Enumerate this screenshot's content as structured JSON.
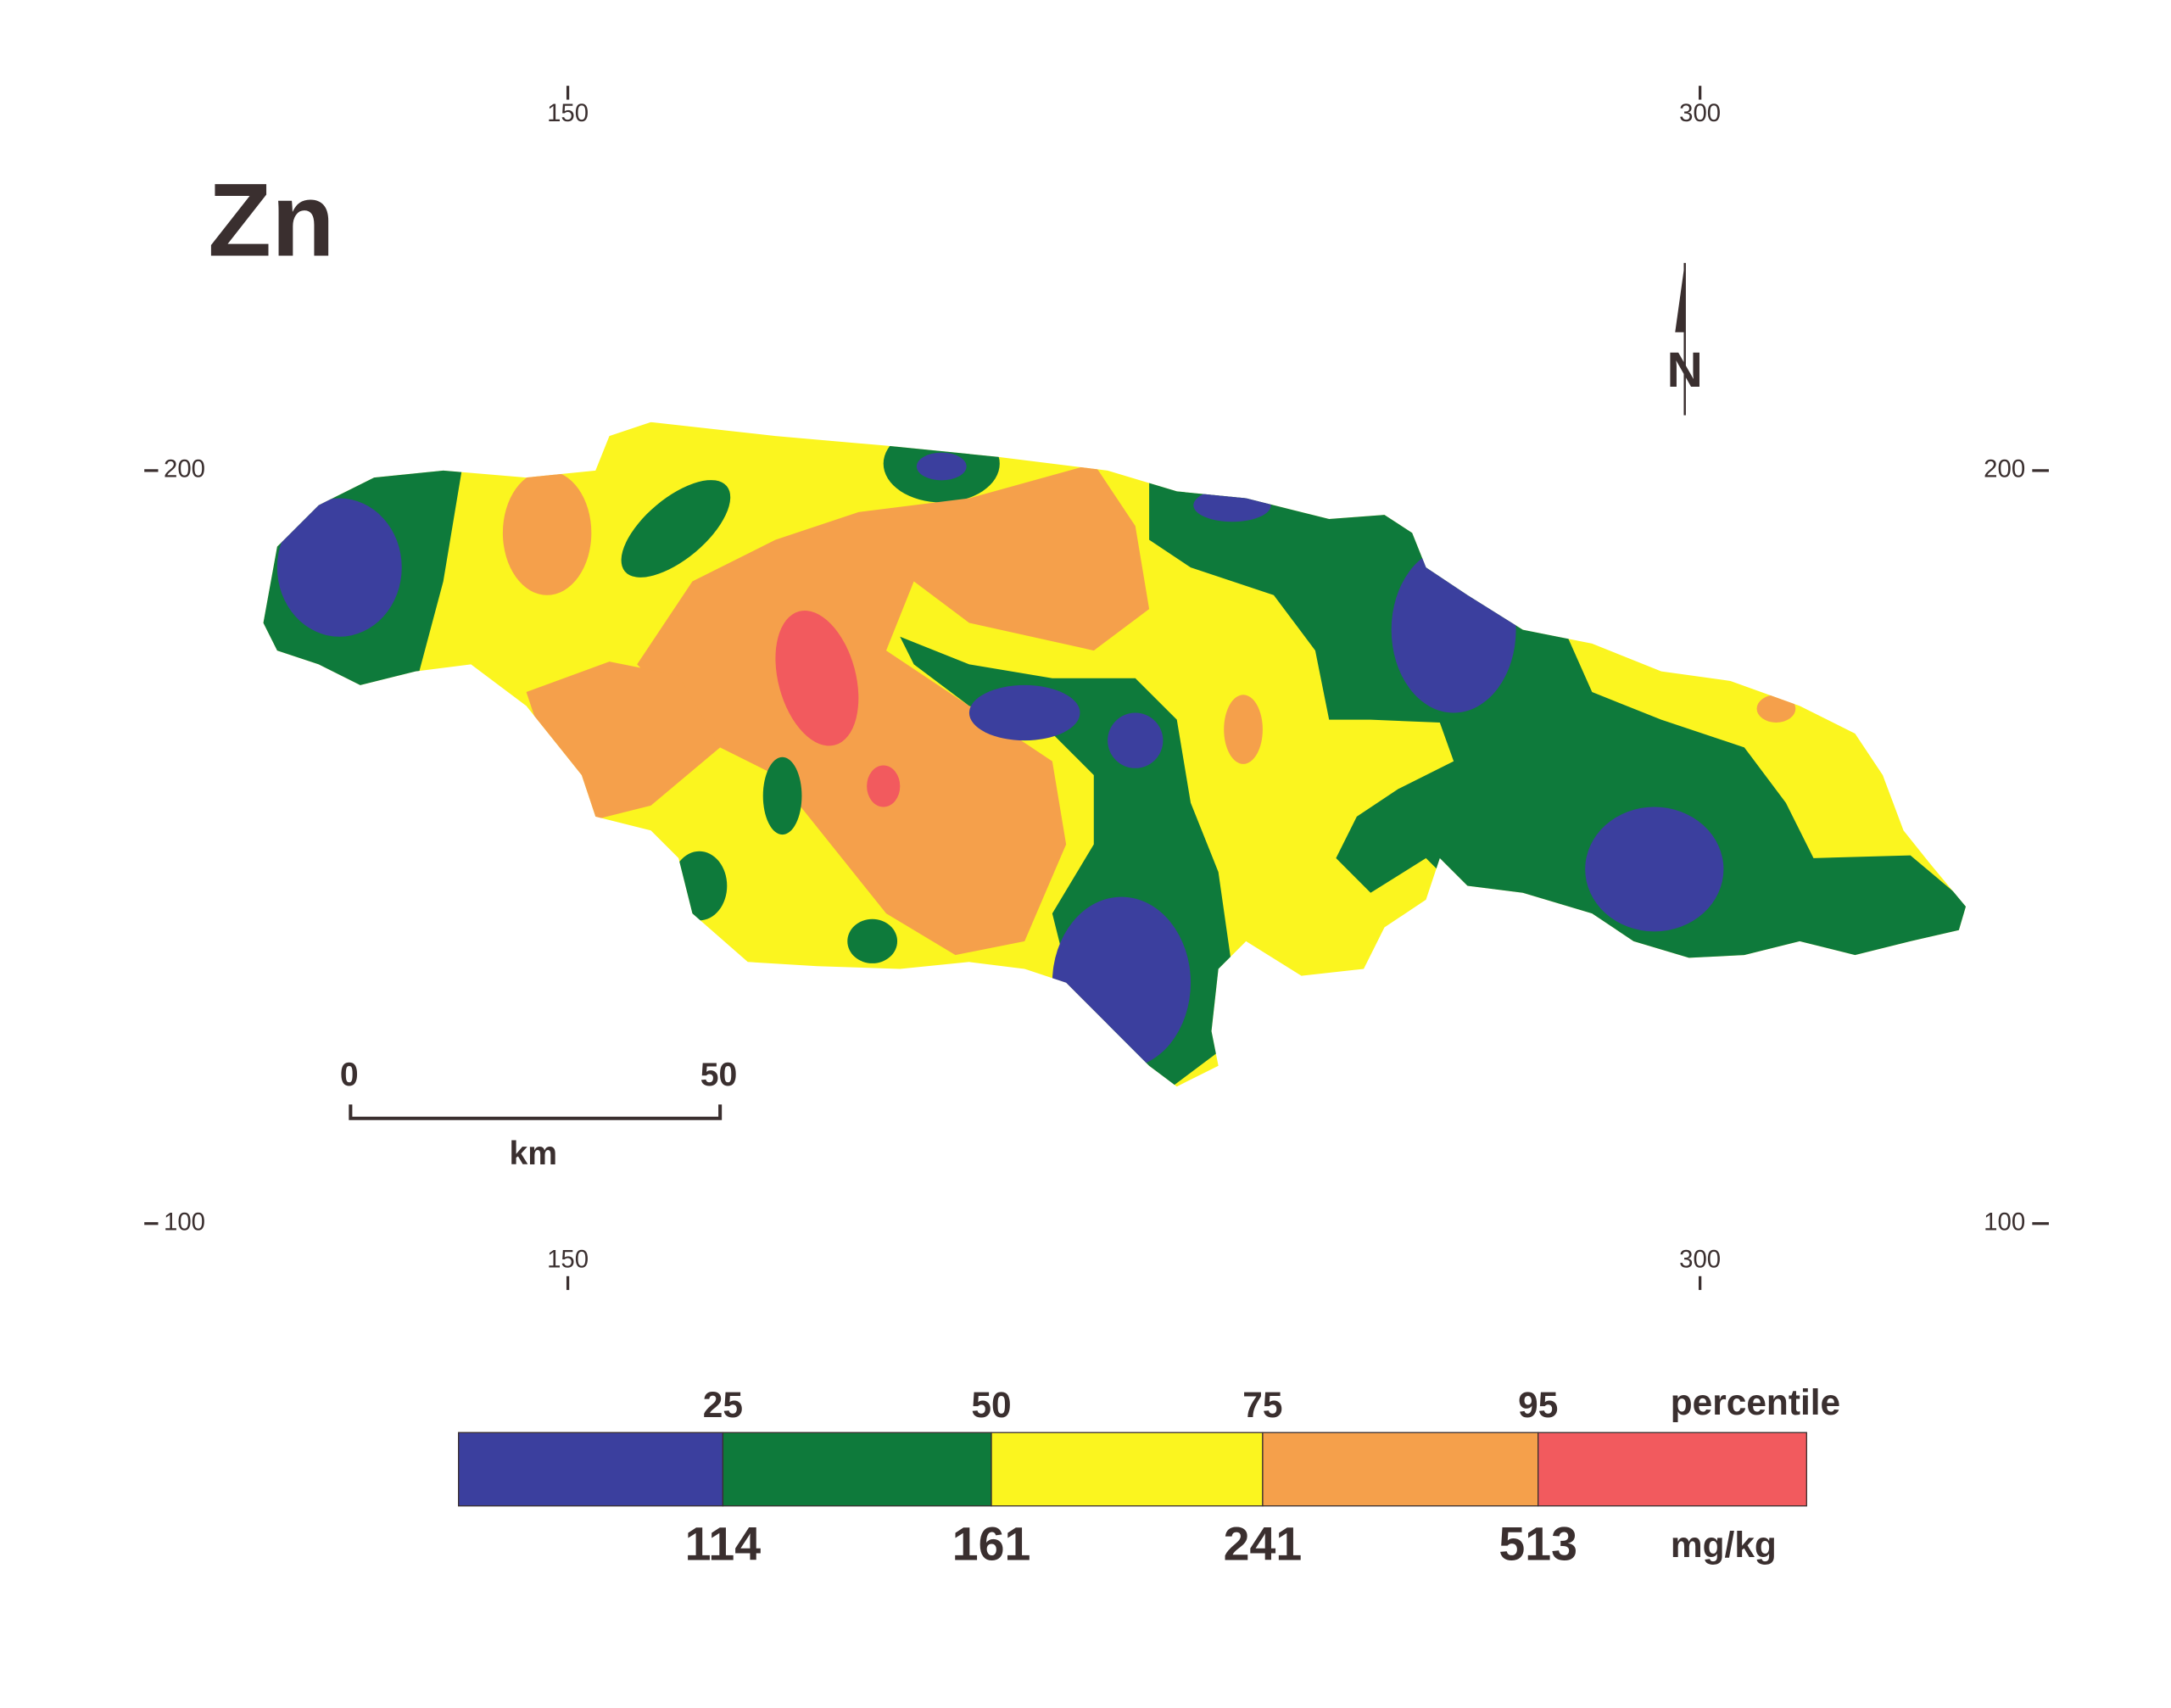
{
  "title": "Zn",
  "grid": {
    "x_labels": [
      150,
      300
    ],
    "y_labels": [
      200,
      100
    ]
  },
  "north": "N",
  "scale_bar": {
    "start": 0,
    "end": 50,
    "unit": "km"
  },
  "legend": {
    "percentile_label": "percentile",
    "percentiles": [
      25,
      50,
      75,
      95
    ],
    "unit_label": "mg/kg",
    "thresholds": [
      114,
      161,
      241,
      513
    ],
    "colors": [
      "#3b3f9e",
      "#0e7a3b",
      "#fbf51f",
      "#f5a04b",
      "#f25a5e"
    ]
  }
}
